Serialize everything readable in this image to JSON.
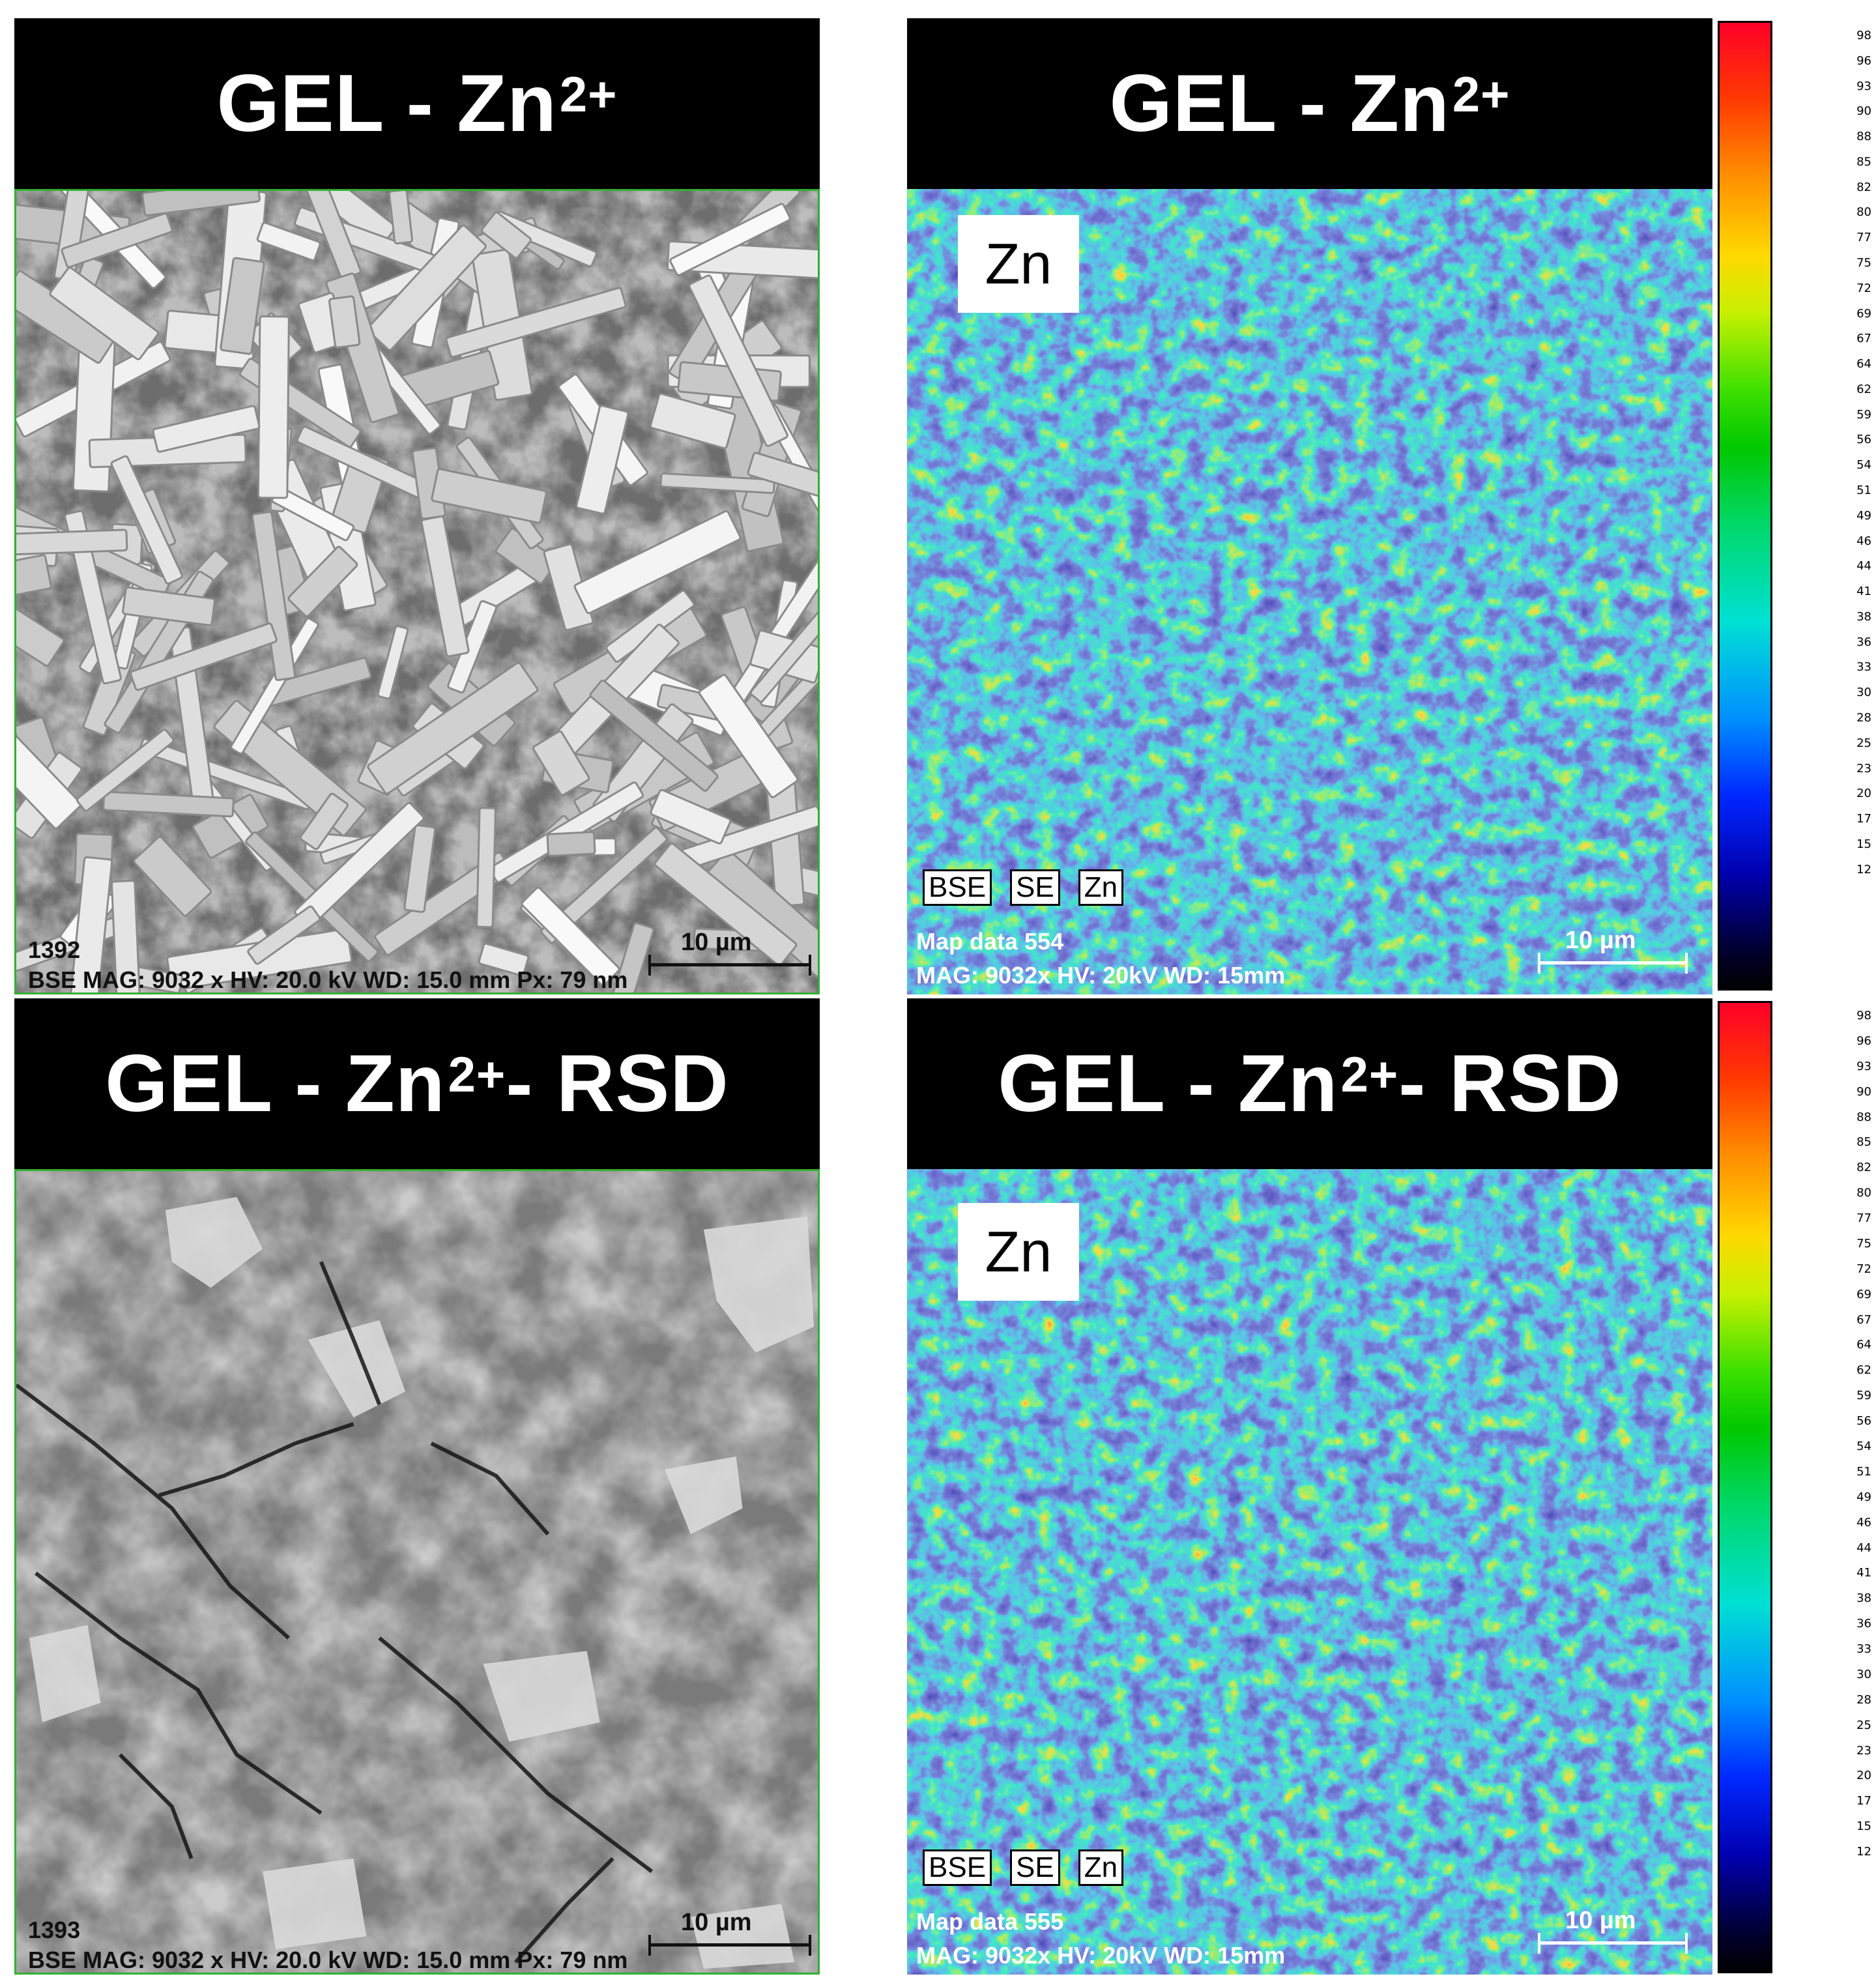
{
  "panels": {
    "top_left": {
      "title_main": "GEL -  Zn",
      "title_sup": "2+",
      "title_suffix": "",
      "image_id": "1392",
      "scale_label": "10 µm",
      "footer": "BSE  MAG: 9032 x  HV: 20.0 kV  WD: 15.0 mm  Px: 79 nm"
    },
    "top_right": {
      "title_main": "GEL -  Zn",
      "title_sup": "2+",
      "title_suffix": "",
      "element_label": "Zn",
      "legend": [
        "BSE",
        "SE",
        "Zn"
      ],
      "map_label": "Map data 554",
      "footer": "MAG: 9032x  HV: 20kV  WD: 15mm",
      "scale_label": "10 µm"
    },
    "bottom_left": {
      "title_main": "GEL -  Zn",
      "title_sup": "2+",
      "title_suffix": " - RSD",
      "image_id": "1393",
      "scale_label": "10 µm",
      "footer": "BSE  MAG: 9032 x  HV: 20.0 kV  WD: 15.0 mm  Px: 79 nm"
    },
    "bottom_right": {
      "title_main": "GEL -  Zn",
      "title_sup": "2+",
      "title_suffix": " - RSD",
      "element_label": "Zn",
      "legend": [
        "BSE",
        "SE",
        "Zn"
      ],
      "map_label": "Map data 555",
      "footer": "MAG: 9032x  HV: 20kV  WD: 15mm",
      "scale_label": "10 µm"
    }
  },
  "colorbar_ticks": [
    "98",
    "96",
    "93",
    "90",
    "88",
    "85",
    "82",
    "80",
    "77",
    "75",
    "72",
    "69",
    "67",
    "64",
    "62",
    "59",
    "56",
    "54",
    "51",
    "49",
    "46",
    "44",
    "41",
    "38",
    "36",
    "33",
    "30",
    "28",
    "25",
    "23",
    "20",
    "17",
    "15",
    "12"
  ],
  "colors": {
    "header_bg": "#000000",
    "sem_border": "#31b031",
    "map_base": "#2a2f8a"
  }
}
